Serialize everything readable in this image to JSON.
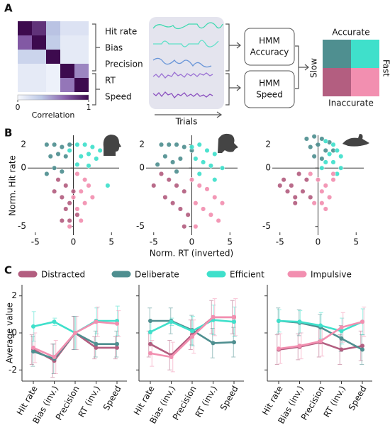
{
  "panel_labels": [
    "A",
    "B",
    "C"
  ],
  "diagram": {
    "trials": "Trials",
    "hmm_accuracy": [
      "HMM",
      "Accuracy"
    ],
    "hmm_speed": [
      "HMM",
      "Speed"
    ],
    "accurate": "Accurate",
    "inaccurate": "Inaccurate",
    "slow": "Slow",
    "fast": "Fast"
  },
  "chart_data": [
    {
      "type": "heatmap",
      "categories": [
        "Hit rate",
        "Bias",
        "Precision",
        "RT",
        "Speed"
      ],
      "values": [
        [
          1,
          0.85,
          0.35,
          0.15,
          0.15
        ],
        [
          0.7,
          1,
          0.3,
          0.1,
          0.1
        ],
        [
          0.25,
          0.25,
          1,
          0.1,
          0.1
        ],
        [
          0.1,
          0.1,
          0.05,
          1,
          0.55
        ],
        [
          0.1,
          0.1,
          0.05,
          0.6,
          1
        ]
      ],
      "zlim": [
        0,
        1
      ],
      "colormap": [
        "#f6f8fd",
        "#bcc8e6",
        "#8a62ad",
        "#3d0a4e"
      ],
      "colorbar_ticks": [
        0,
        1
      ],
      "colorbar_label": "Correlation"
    },
    {
      "type": "scatter",
      "xlabel": "Norm. RT (inverted)",
      "ylabel": "Norm. Hit rate",
      "xlim": [
        -6,
        6
      ],
      "ylim": [
        -5.5,
        2.8
      ],
      "xticks": [
        -5,
        0,
        5
      ],
      "yticks": [
        -5,
        0,
        2
      ],
      "series": [
        {
          "color": "#4f8f90",
          "x": [
            [
              -3.5,
              -2.5,
              -1.5,
              -0.5,
              -3,
              -2,
              -1,
              -2.5,
              -1.5,
              -3.5
            ],
            [
              -4,
              -3,
              -2,
              -1,
              0,
              -3.5,
              -2.5,
              -1.5,
              -4.5,
              -2
            ],
            [
              -1.5,
              -0.5,
              0.5,
              1.5,
              -1,
              0,
              1,
              -0.5,
              0.5,
              2
            ]
          ],
          "y": [
            [
              2,
              2,
              1.8,
              2,
              1,
              1.2,
              1,
              0,
              -0.3,
              -0.5
            ],
            [
              2,
              2,
              2,
              1.8,
              1.5,
              1,
              0.5,
              0.8,
              0.3,
              -0.3
            ],
            [
              2.5,
              2.7,
              2.5,
              2.2,
              1.8,
              2,
              1.5,
              1,
              0.8,
              1.5
            ]
          ]
        },
        {
          "color": "#3fe0cb",
          "x": [
            [
              0.5,
              1.5,
              2.5,
              3.5,
              1,
              2,
              3,
              -0.5,
              0.5,
              2,
              4.5
            ],
            [
              0,
              1,
              2,
              3,
              0.5,
              1.5,
              2.5,
              4,
              1,
              3
            ],
            [
              1,
              2,
              2.5,
              1.5,
              3,
              2,
              1,
              0.5,
              3,
              2.5
            ]
          ],
          "y": [
            [
              2,
              2,
              1.8,
              1.5,
              1,
              1.2,
              0.8,
              1.5,
              0.3,
              0.2,
              -1.5
            ],
            [
              1.8,
              2,
              1.5,
              1.2,
              0.8,
              0.5,
              0.2,
              0,
              -0.5,
              -1
            ],
            [
              2.3,
              2,
              1.5,
              1.2,
              1,
              0.5,
              0.5,
              0,
              0,
              -0.5
            ]
          ]
        },
        {
          "color": "#b35e80",
          "x": [
            [
              -2,
              -1,
              0,
              -1.5,
              -0.5,
              -2.5,
              -1,
              0.5,
              -1.5,
              -0.5
            ],
            [
              -4,
              -3,
              -2,
              -1,
              -3.5,
              -2.5,
              -1.5,
              -0.5,
              -5,
              -1
            ],
            [
              -4.5,
              -3.5,
              -2.5,
              -1.5,
              -4,
              -3,
              -2,
              -1,
              -3,
              -5
            ]
          ],
          "y": [
            [
              -1,
              -1.5,
              -2,
              -2.5,
              -3,
              -2,
              -3.5,
              -4,
              -4.5,
              -4.5
            ],
            [
              -0.5,
              -1,
              -1.5,
              -2,
              -2.5,
              -3,
              -3.5,
              -4,
              -1.5,
              -5
            ],
            [
              -1,
              -1.5,
              -0.5,
              -1,
              -2,
              -2.5,
              -2,
              -2.5,
              -3,
              -1.5
            ]
          ]
        },
        {
          "color": "#f28fb0",
          "x": [
            [
              0.5,
              1.5,
              2,
              1,
              0,
              1.5,
              2.5,
              0.5,
              1,
              -0.5
            ],
            [
              0,
              1,
              2,
              3,
              4,
              0.5,
              1.5,
              2.5,
              3.5,
              0.5
            ],
            [
              -1,
              0,
              1,
              2,
              0.5,
              1.5,
              -0.5,
              0.5,
              2,
              1
            ]
          ],
          "y": [
            [
              -0.5,
              -1,
              -1.5,
              -2,
              -2.5,
              -3,
              -2.5,
              -3.5,
              -4.5,
              -5
            ],
            [
              -1,
              -1.5,
              -1.8,
              -2.5,
              -3,
              -3,
              -3.5,
              -4,
              -4.5,
              -5
            ],
            [
              -0.5,
              -1,
              -1.5,
              -1,
              -2,
              -2.5,
              -3,
              -3,
              -0.5,
              -3.5
            ]
          ]
        }
      ]
    },
    {
      "type": "line",
      "ylabel": "Average value",
      "categories": [
        "Hit rate",
        "Bias (inv.)",
        "Precision",
        "RT (inv.)",
        "Speed"
      ],
      "ylim": [
        -2.6,
        2.6
      ],
      "yticks": [
        -2,
        0,
        2
      ],
      "series": [
        {
          "name": "Distracted",
          "color": "#b35e80",
          "values": [
            [
              -0.9,
              -1.5,
              0,
              -0.8,
              -0.8
            ],
            [
              -0.6,
              -1.2,
              -0.1,
              0.85,
              0.85
            ],
            [
              -0.9,
              -0.75,
              -0.5,
              -0.9,
              -0.7
            ]
          ],
          "errors": [
            [
              0.8,
              0.9,
              0.9,
              0.6,
              0.6
            ],
            [
              0.7,
              0.8,
              0.8,
              0.9,
              0.9
            ],
            [
              0.8,
              0.7,
              0.8,
              0.8,
              0.8
            ]
          ]
        },
        {
          "name": "Deliberate",
          "color": "#4f8f90",
          "values": [
            [
              -1,
              -1.4,
              0,
              -0.6,
              -0.6
            ],
            [
              0.65,
              0.65,
              0.15,
              -0.55,
              -0.5
            ],
            [
              0.65,
              0.55,
              0.3,
              -0.3,
              -0.9
            ]
          ],
          "errors": [
            [
              0.8,
              0.8,
              0.9,
              0.7,
              0.7
            ],
            [
              0.7,
              0.7,
              0.8,
              0.8,
              0.8
            ],
            [
              0.7,
              0.7,
              0.7,
              0.7,
              0.8
            ]
          ]
        },
        {
          "name": "Efficient",
          "color": "#3fe0cb",
          "values": [
            [
              0.35,
              0.6,
              0,
              0.65,
              0.65
            ],
            [
              0.05,
              0.6,
              0.1,
              0.7,
              0.6
            ],
            [
              0.65,
              0.6,
              0.4,
              0.1,
              0.6
            ]
          ],
          "errors": [
            [
              0.8,
              0.2,
              0.9,
              0.7,
              0.8
            ],
            [
              0.6,
              0.2,
              0.8,
              0.8,
              0.8
            ],
            [
              0.6,
              0.6,
              0.7,
              0.7,
              0.7
            ]
          ]
        },
        {
          "name": "Impulsive",
          "color": "#f28fb0",
          "values": [
            [
              -0.8,
              -1.3,
              0,
              0.6,
              0.5
            ],
            [
              -1.1,
              -1.3,
              -0.2,
              0.85,
              0.85
            ],
            [
              -0.85,
              -0.7,
              -0.45,
              0.3,
              0.6
            ]
          ],
          "errors": [
            [
              0.8,
              0.9,
              0.9,
              0.8,
              0.7
            ],
            [
              0.7,
              0.8,
              0.9,
              1,
              1
            ],
            [
              0.8,
              0.7,
              0.8,
              0.8,
              0.8
            ]
          ]
        }
      ]
    }
  ]
}
